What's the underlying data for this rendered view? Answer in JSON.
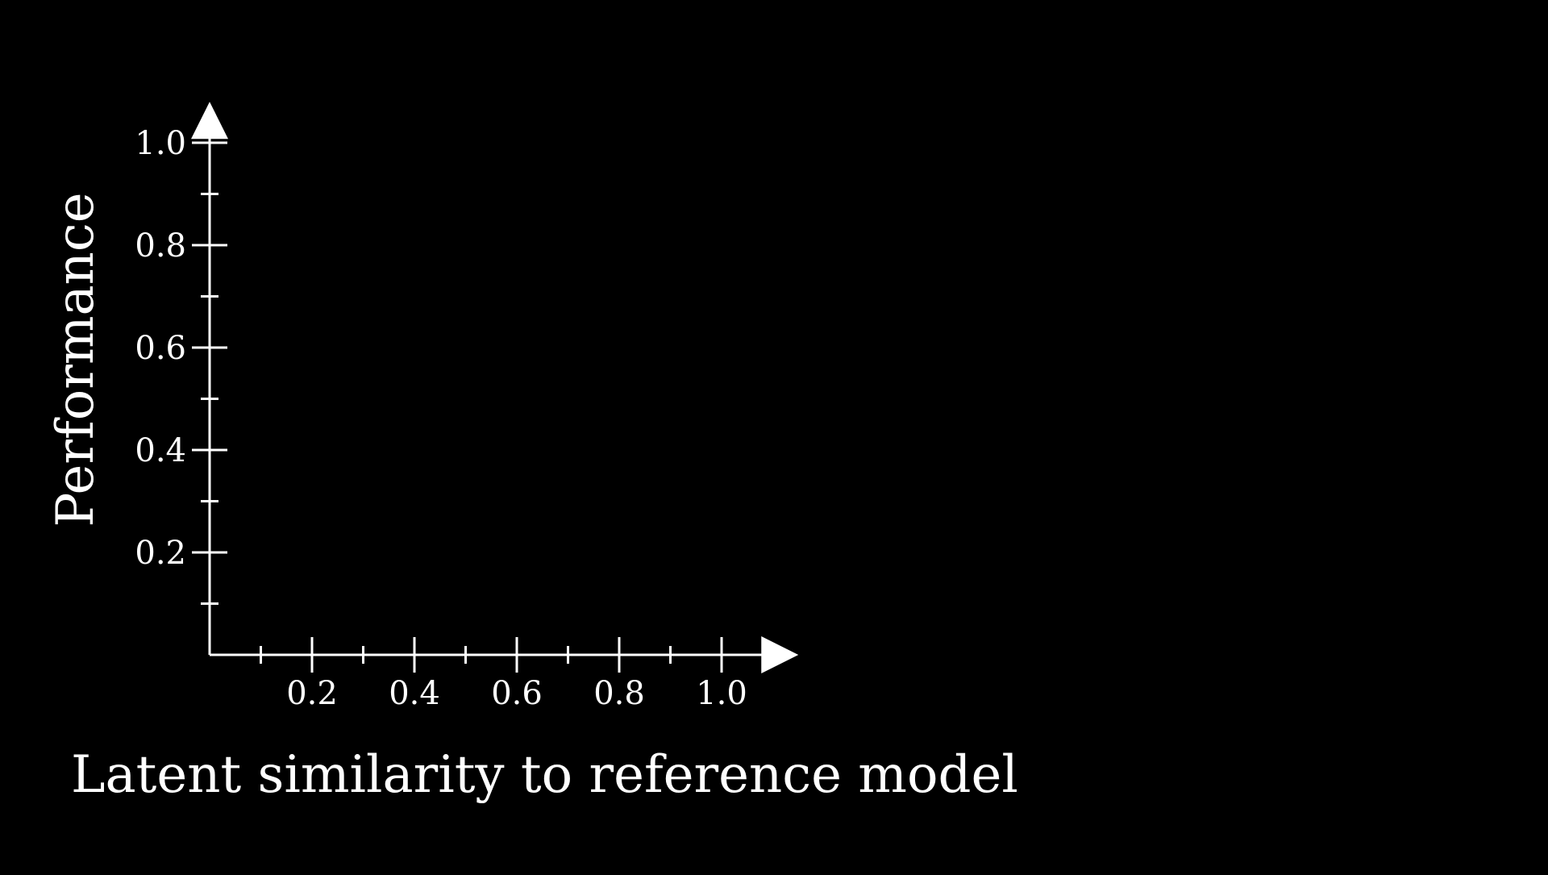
{
  "chart_data": {
    "type": "scatter",
    "title": "",
    "xlabel": "Latent similarity to reference model",
    "ylabel": "Performance",
    "xlim": [
      0,
      1.15
    ],
    "ylim": [
      0,
      1.08
    ],
    "x_ticks": [
      0.1,
      0.2,
      0.3,
      0.4,
      0.5,
      0.6,
      0.7,
      0.8,
      0.9,
      1.0
    ],
    "y_ticks": [
      0.1,
      0.2,
      0.3,
      0.4,
      0.5,
      0.6,
      0.7,
      0.8,
      0.9,
      1.0
    ],
    "x_tick_labels": [
      {
        "value": 0.2,
        "label": "0.2"
      },
      {
        "value": 0.4,
        "label": "0.4"
      },
      {
        "value": 0.6,
        "label": "0.6"
      },
      {
        "value": 0.8,
        "label": "0.8"
      },
      {
        "value": 1.0,
        "label": "1.0"
      }
    ],
    "y_tick_labels": [
      {
        "value": 0.2,
        "label": "0.2"
      },
      {
        "value": 0.4,
        "label": "0.4"
      },
      {
        "value": 0.6,
        "label": "0.6"
      },
      {
        "value": 0.8,
        "label": "0.8"
      },
      {
        "value": 1.0,
        "label": "1.0"
      }
    ],
    "grid": false,
    "series": [],
    "colors": {
      "background": "#000000",
      "axis": "#ffffff",
      "text": "#ffffff"
    }
  }
}
